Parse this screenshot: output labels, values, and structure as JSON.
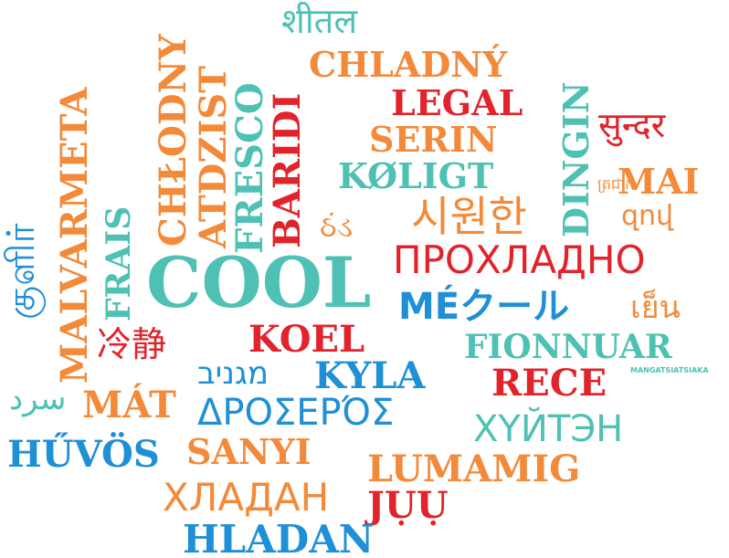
{
  "colors": {
    "orange": "#f28a3a",
    "red": "#e1232b",
    "teal": "#4fc1b4",
    "blue": "#1f8fd6"
  },
  "words": {
    "shital": "शीतल",
    "chladny": "CHLADNÝ",
    "legal": "LEGAL",
    "sundar": "सुन्दर",
    "serin": "SERIN",
    "koligt": "KØLIGT",
    "mai": "MAI",
    "khmer": "ត្រជាក់",
    "armenian": "զով",
    "gujarati": "ઠંડ",
    "korean": "시원한",
    "prokhladno": "ПРОХЛАДНО",
    "cool": "COOL",
    "mekuru": "MÉクール",
    "thai": "เย็น",
    "koel": "KOEL",
    "fionnuar": "FIONNUAR",
    "chinese": "冷静",
    "hebrew": "מגניב",
    "kyla": "KYLA",
    "mangatsiatsiaka": "MANGATSIATSIAKA",
    "rece": "RECE",
    "arabic": "سرد",
    "mat": "MÁT",
    "drosero": "ΔΡΟΣΕΡΌΣ",
    "khuiten": "ХҮЙТЭН",
    "huvos": "HŰVÖS",
    "sanyi": "SANYI",
    "lumamig": "LUMAMIG",
    "khladan": "ХЛАДАН",
    "juu": "JỤỤ",
    "hladan": "HLADAN",
    "malvarmeta": "MALVARMETA",
    "frais": "FRAIS",
    "chlodny": "CHŁODNY",
    "atdzist": "ATDZIST",
    "fresco": "FRESCO",
    "baridi": "BARIDI",
    "dingin": "DINGIN",
    "tamil": "குளிர்"
  }
}
